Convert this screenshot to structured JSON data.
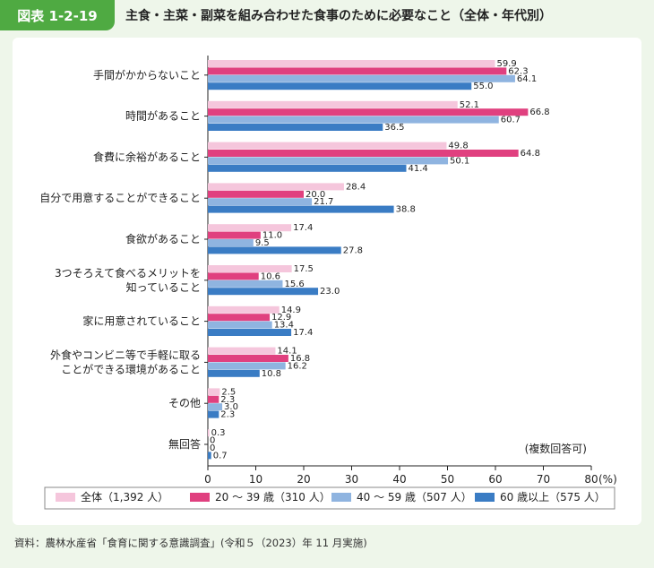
{
  "header": {
    "figure_number": "図表 1-2-19",
    "title": "主食・主菜・副菜を組み合わせた食事のために必要なこと（全体・年代別）"
  },
  "chart_data": {
    "type": "bar",
    "orientation": "horizontal",
    "categories": [
      [
        "手間がかからないこと"
      ],
      [
        "時間があること"
      ],
      [
        "食費に余裕があること"
      ],
      [
        "自分で用意することができること"
      ],
      [
        "食欲があること"
      ],
      [
        "3つそろえて食べるメリットを",
        "知っていること"
      ],
      [
        "家に用意されていること"
      ],
      [
        "外食やコンビニ等で手軽に取る",
        "ことができる環境があること"
      ],
      [
        "その他"
      ],
      [
        "無回答"
      ]
    ],
    "series": [
      {
        "name": "全体（1,392 人）",
        "color": "#f5c6dc",
        "values": [
          59.9,
          52.1,
          49.8,
          28.4,
          17.4,
          17.5,
          14.9,
          14.1,
          2.5,
          0.3
        ]
      },
      {
        "name": "20 ～ 39 歳（310 人）",
        "color": "#e0407f",
        "values": [
          62.3,
          66.8,
          64.8,
          20.0,
          11.0,
          10.6,
          12.9,
          16.8,
          2.3,
          0
        ]
      },
      {
        "name": "40 ～ 59 歳（507 人）",
        "color": "#8fb4e0",
        "values": [
          64.1,
          60.7,
          50.1,
          21.7,
          9.5,
          15.6,
          13.4,
          16.2,
          3.0,
          0
        ]
      },
      {
        "name": "60 歳以上（575 人）",
        "color": "#3a7cc4",
        "values": [
          55.0,
          36.5,
          41.4,
          38.8,
          27.8,
          23.0,
          17.4,
          10.8,
          2.3,
          0.7
        ]
      }
    ],
    "value_labels": [
      [
        "59.9",
        "62.3",
        "64.1",
        "55.0"
      ],
      [
        "52.1",
        "66.8",
        "60.7",
        "36.5"
      ],
      [
        "49.8",
        "64.8",
        "50.1",
        "41.4"
      ],
      [
        "28.4",
        "20.0",
        "21.7",
        "38.8"
      ],
      [
        "17.4",
        "11.0",
        "9.5",
        "27.8"
      ],
      [
        "17.5",
        "10.6",
        "15.6",
        "23.0"
      ],
      [
        "14.9",
        "12.9",
        "13.4",
        "17.4"
      ],
      [
        "14.1",
        "16.8",
        "16.2",
        "10.8"
      ],
      [
        "2.5",
        "2.3",
        "3.0",
        "2.3"
      ],
      [
        "0.3",
        "0",
        "0",
        "0.7"
      ]
    ],
    "x_ticks": [
      "0",
      "10",
      "20",
      "30",
      "40",
      "50",
      "60",
      "70",
      "80"
    ],
    "x_unit": "(%)",
    "xlim": [
      0,
      80
    ],
    "annotation": "(複数回答可)",
    "legend_position": "bottom"
  },
  "source": "資料：農林水産省「食育に関する意識調査」(令和５（2023）年 11 月実施)"
}
